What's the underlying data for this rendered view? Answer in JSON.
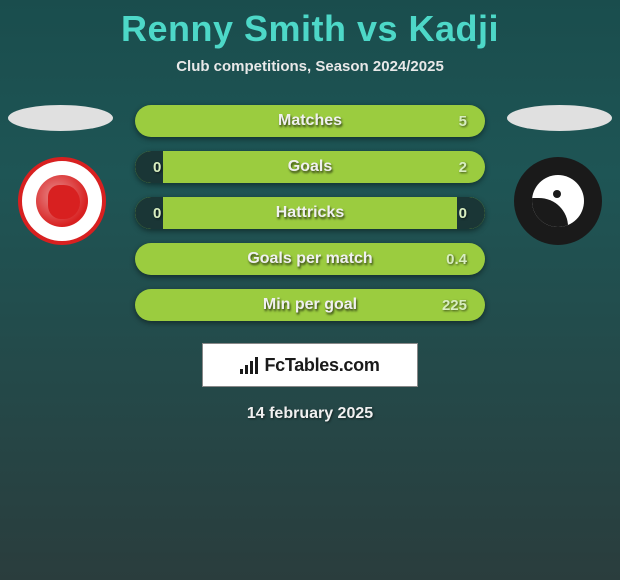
{
  "header": {
    "title": "Renny Smith vs Kadji",
    "subtitle": "Club competitions, Season 2024/2025"
  },
  "colors": {
    "title": "#4dd8c8",
    "bar_fill": "#9bcc3f",
    "bar_empty": "#1a3636",
    "bg_top": "#1a4d4d",
    "bg_bottom": "#2a3d3d",
    "text": "#f0f0f0"
  },
  "stats": [
    {
      "label": "Matches",
      "left_val": "",
      "right_val": "5",
      "left_pct": 0,
      "right_pct": 0
    },
    {
      "label": "Goals",
      "left_val": "0",
      "right_val": "2",
      "left_pct": 8,
      "right_pct": 0
    },
    {
      "label": "Hattricks",
      "left_val": "0",
      "right_val": "0",
      "left_pct": 8,
      "right_pct": 8
    },
    {
      "label": "Goals per match",
      "left_val": "",
      "right_val": "0.4",
      "left_pct": 0,
      "right_pct": 0
    },
    {
      "label": "Min per goal",
      "left_val": "",
      "right_val": "225",
      "left_pct": 0,
      "right_pct": 0
    }
  ],
  "brand": {
    "prefix": "Fc",
    "suffix": "Tables.com"
  },
  "date": "14 february 2025"
}
